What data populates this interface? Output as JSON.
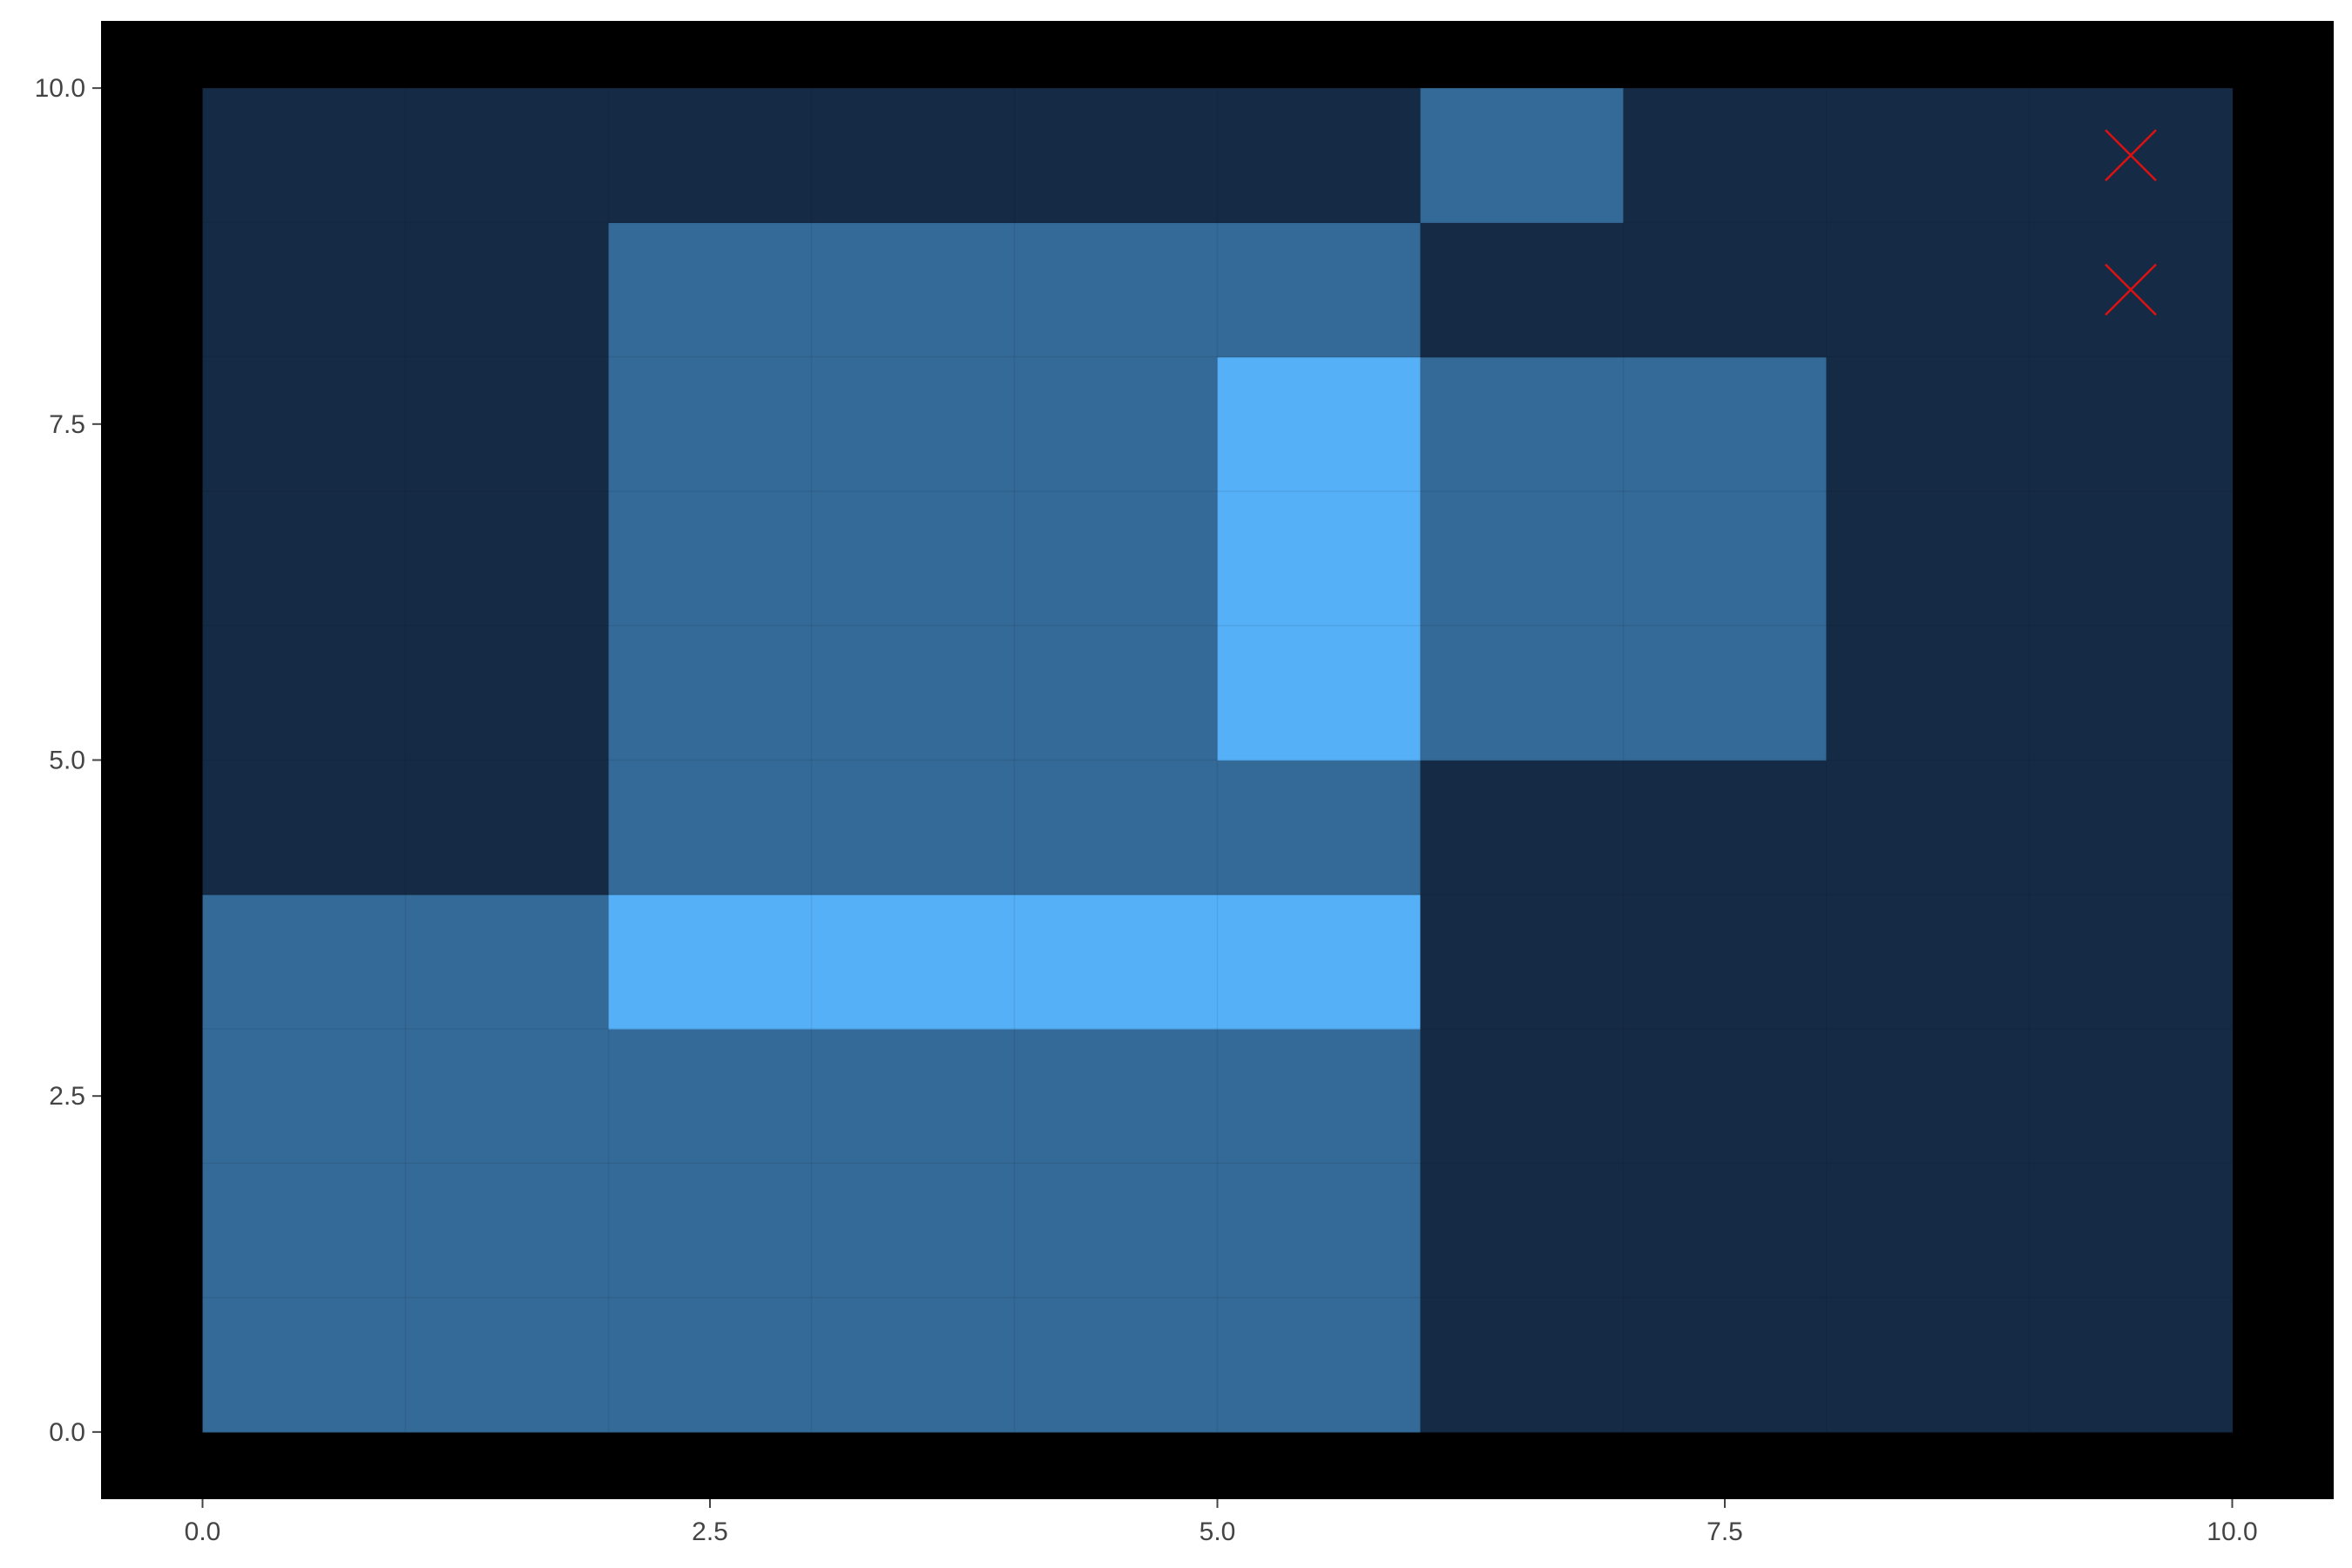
{
  "chart_data": {
    "type": "heatmap",
    "title": "",
    "xlabel": "",
    "ylabel": "",
    "xlim": [
      -0.5,
      10.5
    ],
    "ylim": [
      -0.5,
      10.5
    ],
    "x_ticks": [
      0.0,
      2.5,
      5.0,
      7.5,
      10.0
    ],
    "y_ticks": [
      0.0,
      2.5,
      5.0,
      7.5,
      10.0
    ],
    "x_tick_labels": [
      "0.0",
      "2.5",
      "5.0",
      "7.5",
      "10.0"
    ],
    "y_tick_labels": [
      "0.0",
      "2.5",
      "5.0",
      "7.5",
      "10.0"
    ],
    "grid": [
      [
        1,
        1,
        1,
        1,
        1,
        1,
        0,
        0,
        0,
        0
      ],
      [
        1,
        1,
        1,
        1,
        1,
        1,
        0,
        0,
        0,
        0
      ],
      [
        1,
        1,
        1,
        1,
        1,
        1,
        0,
        0,
        0,
        0
      ],
      [
        1,
        1,
        2,
        2,
        2,
        2,
        0,
        0,
        0,
        0
      ],
      [
        0,
        0,
        1,
        1,
        1,
        1,
        0,
        0,
        0,
        0
      ],
      [
        0,
        0,
        1,
        1,
        1,
        2,
        1,
        1,
        0,
        0
      ],
      [
        0,
        0,
        1,
        1,
        1,
        2,
        1,
        1,
        0,
        0
      ],
      [
        0,
        0,
        1,
        1,
        1,
        2,
        1,
        1,
        0,
        0
      ],
      [
        0,
        0,
        1,
        1,
        1,
        1,
        0,
        0,
        0,
        0
      ],
      [
        0,
        0,
        0,
        0,
        0,
        0,
        1,
        0,
        0,
        0
      ]
    ],
    "cell_colors": {
      "0": "#152b45",
      "1": "#346a98",
      "2": "#56b0f7"
    },
    "markers": [
      {
        "x": 9.5,
        "y": 9.5,
        "symbol": "x",
        "color": "#dd1111"
      },
      {
        "x": 9.5,
        "y": 8.5,
        "symbol": "x",
        "color": "#dd1111"
      }
    ],
    "panel_background": "#000000",
    "axis_text_color": "#444444"
  }
}
